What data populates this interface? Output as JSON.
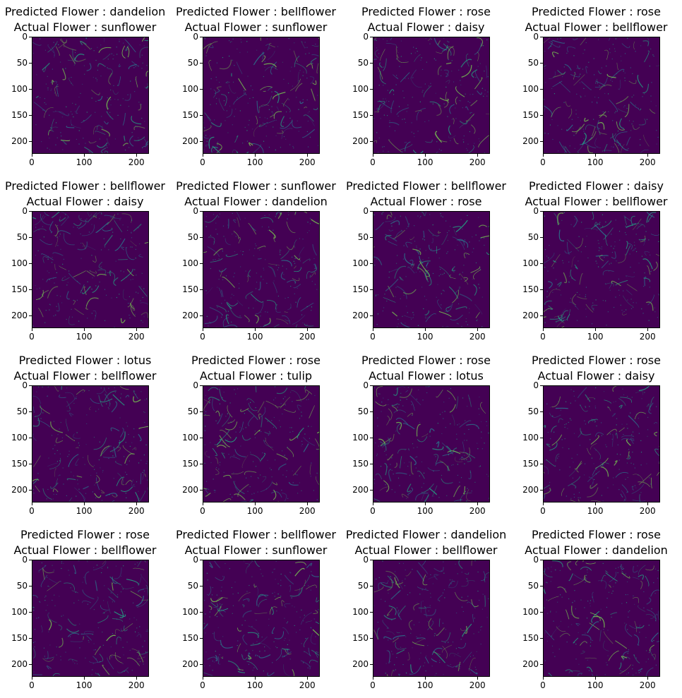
{
  "chart_data": [
    {
      "type": "heatmap",
      "title_line1": "Predicted Flower : dandelion",
      "title_line2": "Actual Flower : sunflower",
      "xticks": [
        0,
        100,
        200
      ],
      "yticks": [
        0,
        50,
        100,
        150,
        200
      ],
      "xlim": [
        0,
        224
      ],
      "ylim": [
        224,
        0
      ],
      "colormap": "viridis"
    },
    {
      "type": "heatmap",
      "title_line1": "Predicted Flower : bellflower",
      "title_line2": "Actual Flower : sunflower",
      "xticks": [
        0,
        100,
        200
      ],
      "yticks": [
        0,
        50,
        100,
        150,
        200
      ],
      "xlim": [
        0,
        224
      ],
      "ylim": [
        224,
        0
      ],
      "colormap": "viridis"
    },
    {
      "type": "heatmap",
      "title_line1": "Predicted Flower : rose",
      "title_line2": "Actual Flower : daisy",
      "xticks": [
        0,
        100,
        200
      ],
      "yticks": [
        0,
        50,
        100,
        150,
        200
      ],
      "xlim": [
        0,
        224
      ],
      "ylim": [
        224,
        0
      ],
      "colormap": "viridis"
    },
    {
      "type": "heatmap",
      "title_line1": "Predicted Flower : rose",
      "title_line2": "Actual Flower : bellflower",
      "xticks": [
        0,
        100,
        200
      ],
      "yticks": [
        0,
        50,
        100,
        150,
        200
      ],
      "xlim": [
        0,
        224
      ],
      "ylim": [
        224,
        0
      ],
      "colormap": "viridis"
    },
    {
      "type": "heatmap",
      "title_line1": "Predicted Flower : bellflower",
      "title_line2": "Actual Flower : daisy",
      "xticks": [
        0,
        100,
        200
      ],
      "yticks": [
        0,
        50,
        100,
        150,
        200
      ],
      "xlim": [
        0,
        224
      ],
      "ylim": [
        224,
        0
      ],
      "colormap": "viridis"
    },
    {
      "type": "heatmap",
      "title_line1": "Predicted Flower : sunflower",
      "title_line2": "Actual Flower : dandelion",
      "xticks": [
        0,
        100,
        200
      ],
      "yticks": [
        0,
        50,
        100,
        150,
        200
      ],
      "xlim": [
        0,
        224
      ],
      "ylim": [
        224,
        0
      ],
      "colormap": "viridis"
    },
    {
      "type": "heatmap",
      "title_line1": "Predicted Flower : bellflower",
      "title_line2": "Actual Flower : rose",
      "xticks": [
        0,
        100,
        200
      ],
      "yticks": [
        0,
        50,
        100,
        150,
        200
      ],
      "xlim": [
        0,
        224
      ],
      "ylim": [
        224,
        0
      ],
      "colormap": "viridis"
    },
    {
      "type": "heatmap",
      "title_line1": "Predicted Flower : daisy",
      "title_line2": "Actual Flower : bellflower",
      "xticks": [
        0,
        100,
        200
      ],
      "yticks": [
        0,
        50,
        100,
        150,
        200
      ],
      "xlim": [
        0,
        224
      ],
      "ylim": [
        224,
        0
      ],
      "colormap": "viridis"
    },
    {
      "type": "heatmap",
      "title_line1": "Predicted Flower : lotus",
      "title_line2": "Actual Flower : bellflower",
      "xticks": [
        0,
        100,
        200
      ],
      "yticks": [
        0,
        50,
        100,
        150,
        200
      ],
      "xlim": [
        0,
        224
      ],
      "ylim": [
        224,
        0
      ],
      "colormap": "viridis"
    },
    {
      "type": "heatmap",
      "title_line1": "Predicted Flower : rose",
      "title_line2": "Actual Flower : tulip",
      "xticks": [
        0,
        100,
        200
      ],
      "yticks": [
        0,
        50,
        100,
        150,
        200
      ],
      "xlim": [
        0,
        224
      ],
      "ylim": [
        224,
        0
      ],
      "colormap": "viridis"
    },
    {
      "type": "heatmap",
      "title_line1": "Predicted Flower : rose",
      "title_line2": "Actual Flower : lotus",
      "xticks": [
        0,
        100,
        200
      ],
      "yticks": [
        0,
        50,
        100,
        150,
        200
      ],
      "xlim": [
        0,
        224
      ],
      "ylim": [
        224,
        0
      ],
      "colormap": "viridis"
    },
    {
      "type": "heatmap",
      "title_line1": "Predicted Flower : rose",
      "title_line2": "Actual Flower : daisy",
      "xticks": [
        0,
        100,
        200
      ],
      "yticks": [
        0,
        50,
        100,
        150,
        200
      ],
      "xlim": [
        0,
        224
      ],
      "ylim": [
        224,
        0
      ],
      "colormap": "viridis"
    },
    {
      "type": "heatmap",
      "title_line1": "Predicted Flower : rose",
      "title_line2": "Actual Flower : bellflower",
      "xticks": [
        0,
        100,
        200
      ],
      "yticks": [
        0,
        50,
        100,
        150,
        200
      ],
      "xlim": [
        0,
        224
      ],
      "ylim": [
        224,
        0
      ],
      "colormap": "viridis"
    },
    {
      "type": "heatmap",
      "title_line1": "Predicted Flower : bellflower",
      "title_line2": "Actual Flower : sunflower",
      "xticks": [
        0,
        100,
        200
      ],
      "yticks": [
        0,
        50,
        100,
        150,
        200
      ],
      "xlim": [
        0,
        224
      ],
      "ylim": [
        224,
        0
      ],
      "colormap": "viridis"
    },
    {
      "type": "heatmap",
      "title_line1": "Predicted Flower : dandelion",
      "title_line2": "Actual Flower : bellflower",
      "xticks": [
        0,
        100,
        200
      ],
      "yticks": [
        0,
        50,
        100,
        150,
        200
      ],
      "xlim": [
        0,
        224
      ],
      "ylim": [
        224,
        0
      ],
      "colormap": "viridis"
    },
    {
      "type": "heatmap",
      "title_line1": "Predicted Flower : rose",
      "title_line2": "Actual Flower : dandelion",
      "xticks": [
        0,
        100,
        200
      ],
      "yticks": [
        0,
        50,
        100,
        150,
        200
      ],
      "xlim": [
        0,
        224
      ],
      "ylim": [
        224,
        0
      ],
      "colormap": "viridis"
    }
  ],
  "colors": {
    "background": "#440154",
    "mid": "#2a788e",
    "high": "#22a884",
    "peak": "#7ad151"
  }
}
